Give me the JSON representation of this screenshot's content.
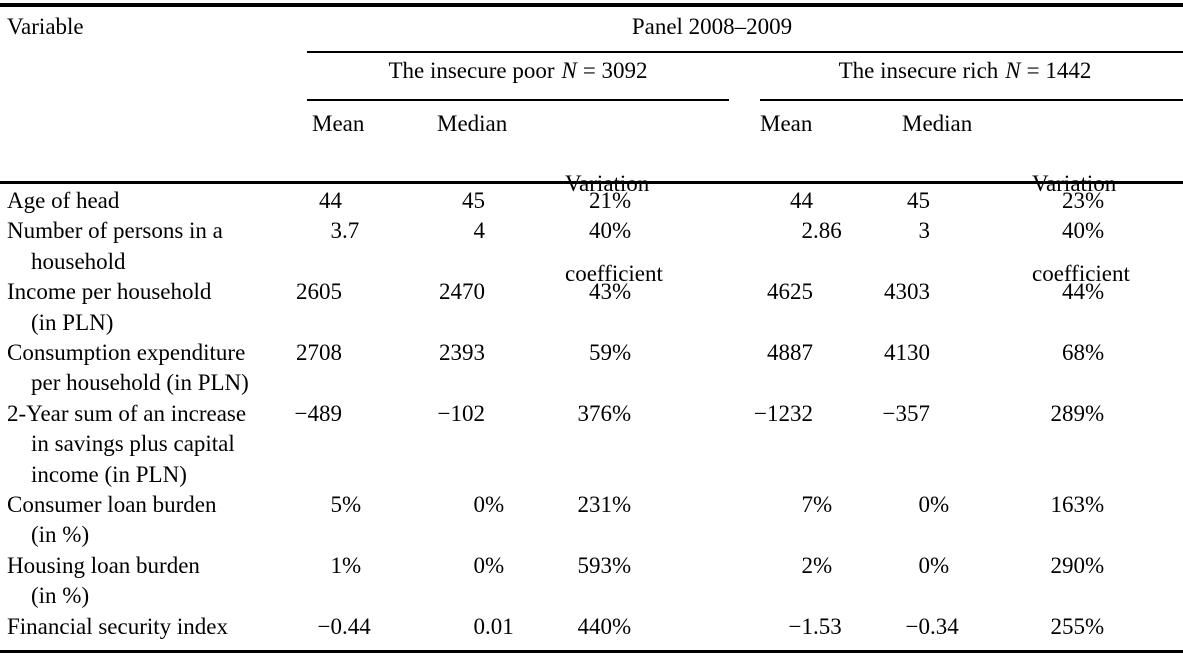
{
  "header": {
    "variable": "Variable",
    "panel": "Panel 2008–2009",
    "poor_group": {
      "label": "The insecure poor",
      "n": "N",
      "eq": "= 3092"
    },
    "rich_group": {
      "label": "The insecure rich",
      "n": "N",
      "eq": "= 1442"
    },
    "columns": {
      "mean": "Mean",
      "median": "Median",
      "variation_line1": "Variation",
      "variation_line2": "coefficient"
    }
  },
  "rows": [
    {
      "variable": [
        "Age of head"
      ],
      "poor": [
        "44",
        "45",
        "21%"
      ],
      "rich": [
        "44",
        "45",
        "23%"
      ]
    },
    {
      "variable": [
        "Number of persons in a",
        "household"
      ],
      "poor": [
        "3.7",
        "4",
        "40%"
      ],
      "rich": [
        "2.86",
        "3",
        "40%"
      ]
    },
    {
      "variable": [
        "Income per household",
        "(in PLN)"
      ],
      "poor": [
        "2605",
        "2470",
        "43%"
      ],
      "rich": [
        "4625",
        "4303",
        "44%"
      ]
    },
    {
      "variable": [
        "Consumption expenditure",
        "per household (in PLN)"
      ],
      "poor": [
        "2708",
        "2393",
        "59%"
      ],
      "rich": [
        "4887",
        "4130",
        "68%"
      ]
    },
    {
      "variable": [
        "2-Year sum of an increase",
        "in savings plus capital",
        "income (in PLN)"
      ],
      "poor": [
        "−489",
        "−102",
        "376%"
      ],
      "rich": [
        "−1232",
        "−357",
        "289%"
      ]
    },
    {
      "variable": [
        "Consumer loan burden",
        "(in %)"
      ],
      "poor": [
        "5%",
        "0%",
        "231%"
      ],
      "rich": [
        "7%",
        "0%",
        "163%"
      ]
    },
    {
      "variable": [
        "Housing loan burden",
        "(in %)"
      ],
      "poor": [
        "1%",
        "0%",
        "593%"
      ],
      "rich": [
        "2%",
        "0%",
        "290%"
      ]
    },
    {
      "variable": [
        "Financial security index"
      ],
      "poor": [
        "−0.44",
        "0.01",
        "440%"
      ],
      "rich": [
        "−1.53",
        "−0.34",
        "255%"
      ]
    }
  ]
}
